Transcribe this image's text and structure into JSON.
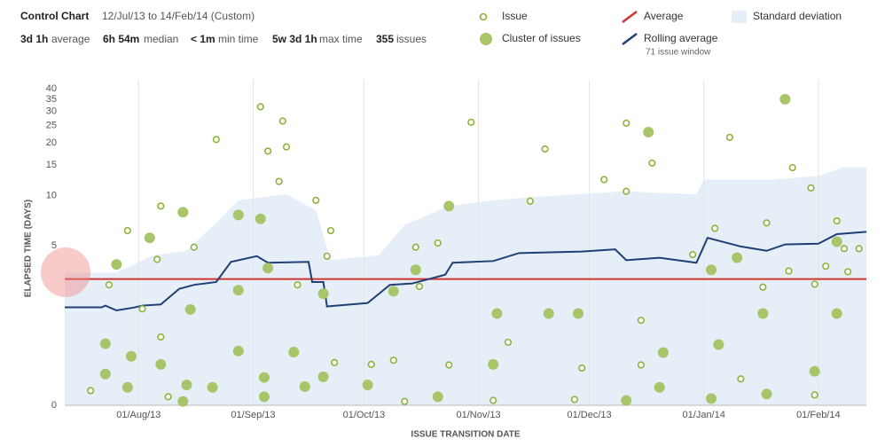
{
  "header": {
    "title": "Control Chart",
    "range": "12/Jul/13 to 14/Feb/14 (Custom)",
    "stats": [
      {
        "value": "3d 1h",
        "label": "average"
      },
      {
        "value": "6h 54m",
        "label": "median"
      },
      {
        "value": "< 1m",
        "label": "min time"
      },
      {
        "value": "5w 3d 1h",
        "label": "max time"
      },
      {
        "value": "355",
        "label": "issues"
      }
    ]
  },
  "chart_data": {
    "type": "control",
    "xlabel": "ISSUE TRANSITION DATE",
    "ylabel": "ELAPSED TIME (DAYS)",
    "xlim": [
      "2013-07-12",
      "2014-02-14"
    ],
    "xticks": [
      {
        "value": "2013-08-01",
        "label": "01/Aug/13"
      },
      {
        "value": "2013-09-01",
        "label": "01/Sep/13"
      },
      {
        "value": "2013-10-01",
        "label": "01/Oct/13"
      },
      {
        "value": "2013-11-01",
        "label": "01/Nov/13"
      },
      {
        "value": "2013-12-01",
        "label": "01/Dec/13"
      },
      {
        "value": "2014-01-01",
        "label": "01/Jan/14"
      },
      {
        "value": "2014-02-01",
        "label": "01/Feb/14"
      }
    ],
    "ylim": [
      0,
      40
    ],
    "yticks": [
      0,
      5,
      10,
      15,
      20,
      25,
      30,
      35,
      40
    ],
    "grid": "x",
    "series": [
      {
        "name": "Issue",
        "kind": "scatter",
        "color": "#8db33a",
        "x": [
          "2013-07-19",
          "2013-07-24",
          "2013-07-29",
          "2013-08-07",
          "2013-08-07",
          "2013-08-02",
          "2013-08-09",
          "2013-08-06",
          "2013-08-16",
          "2013-08-22",
          "2013-09-03",
          "2013-09-05",
          "2013-09-09",
          "2013-09-10",
          "2013-09-08",
          "2013-09-13",
          "2013-09-18",
          "2013-09-22",
          "2013-09-23",
          "2013-09-21",
          "2013-10-03",
          "2013-10-09",
          "2013-10-12",
          "2013-10-15",
          "2013-10-16",
          "2013-10-21",
          "2013-10-24",
          "2013-10-30",
          "2013-11-05",
          "2013-11-09",
          "2013-11-15",
          "2013-11-19",
          "2013-11-27",
          "2013-11-29",
          "2013-12-05",
          "2013-12-11",
          "2013-12-11",
          "2013-12-15",
          "2013-12-15",
          "2013-12-18",
          "2013-12-29",
          "2014-01-04",
          "2014-01-08",
          "2014-01-11",
          "2014-01-17",
          "2014-01-18",
          "2014-01-24",
          "2014-01-25",
          "2014-01-30",
          "2014-01-31",
          "2014-01-31",
          "2014-02-03",
          "2014-02-06",
          "2014-02-08",
          "2014-02-09",
          "2014-02-12"
        ],
        "values": [
          0.16,
          2.77,
          6.2,
          8.7,
          1.07,
          1.85,
          0.09,
          4.1,
          4.9,
          20.9,
          31.8,
          18,
          26.5,
          19,
          12.1,
          2.77,
          9.4,
          6.2,
          0.56,
          4.3,
          0.53,
          0.6,
          0.04,
          4.9,
          2.7,
          5.2,
          0.52,
          26.1,
          0.05,
          0.95,
          9.3,
          18.5,
          0.06,
          0.47,
          12.4,
          25.8,
          10.6,
          1.5,
          0.52,
          15.4,
          4.4,
          6.4,
          21.5,
          0.31,
          2.67,
          6.9,
          3.44,
          14.5,
          11.1,
          0.11,
          2.8,
          3.7,
          7.1,
          4.8,
          3.4,
          4.8
        ]
      },
      {
        "name": "Cluster of issues",
        "kind": "cluster",
        "color": "#a9c56a",
        "x": [
          "2013-07-26",
          "2013-07-23",
          "2013-07-23",
          "2013-07-29",
          "2013-07-30",
          "2013-08-04",
          "2013-08-07",
          "2013-08-13",
          "2013-08-15",
          "2013-08-14",
          "2013-08-13",
          "2013-08-21",
          "2013-08-28",
          "2013-08-28",
          "2013-08-28",
          "2013-09-03",
          "2013-09-04",
          "2013-09-04",
          "2013-09-05",
          "2013-09-12",
          "2013-09-15",
          "2013-09-20",
          "2013-09-20",
          "2013-10-02",
          "2013-10-09",
          "2013-10-15",
          "2013-10-21",
          "2013-10-24",
          "2013-11-05",
          "2013-11-06",
          "2013-11-20",
          "2013-11-28",
          "2013-12-11",
          "2013-12-17",
          "2013-12-20",
          "2013-12-21",
          "2014-01-03",
          "2014-01-03",
          "2014-01-05",
          "2014-01-10",
          "2014-01-17",
          "2014-01-18",
          "2014-01-23",
          "2014-01-31",
          "2014-02-06",
          "2014-02-06"
        ],
        "values": [
          3.8,
          0.92,
          0.38,
          0.2,
          0.67,
          5.6,
          0.53,
          8,
          1.83,
          0.23,
          0.04,
          0.2,
          2.54,
          0.77,
          7.7,
          7.3,
          0.33,
          0.09,
          3.6,
          0.75,
          0.21,
          0.34,
          2.4,
          0.23,
          2.5,
          3.5,
          0.09,
          8.7,
          0.53,
          1.7,
          1.7,
          1.7,
          0.05,
          23,
          0.2,
          0.74,
          3.5,
          0.07,
          0.9,
          4.2,
          1.7,
          0.12,
          35,
          0.42,
          5.3,
          1.7
        ]
      },
      {
        "name": "Average",
        "kind": "hline",
        "color": "#d0342c",
        "value": 3.04
      },
      {
        "name": "Rolling average",
        "kind": "line",
        "color": "#1f3f77",
        "window_label": "71 issue window",
        "x": [
          "2013-07-12",
          "2013-07-22",
          "2013-07-23",
          "2013-07-26",
          "2013-07-31",
          "2013-08-02",
          "2013-08-07",
          "2013-08-12",
          "2013-08-16",
          "2013-08-22",
          "2013-08-26",
          "2013-09-02",
          "2013-09-05",
          "2013-09-16",
          "2013-09-17",
          "2013-09-20",
          "2013-09-21",
          "2013-10-02",
          "2013-10-08",
          "2013-10-14",
          "2013-10-23",
          "2013-10-25",
          "2013-11-05",
          "2013-11-12",
          "2013-11-29",
          "2013-12-08",
          "2013-12-11",
          "2013-12-20",
          "2013-12-30",
          "2014-01-02",
          "2014-01-11",
          "2014-01-18",
          "2014-01-23",
          "2014-02-01",
          "2014-02-06",
          "2014-02-14"
        ],
        "values": [
          1.9,
          1.9,
          1.96,
          1.8,
          1.9,
          1.96,
          2.0,
          2.6,
          2.77,
          2.9,
          3.95,
          4.3,
          3.9,
          3.95,
          2.9,
          2.9,
          1.93,
          2.05,
          2.77,
          2.83,
          3.25,
          3.9,
          4.0,
          4.5,
          4.6,
          4.75,
          4.05,
          4.2,
          3.9,
          5.6,
          4.95,
          4.65,
          5.1,
          5.15,
          5.9,
          6.1
        ]
      },
      {
        "name": "Standard deviation",
        "kind": "area",
        "color": "#e6eef8",
        "x": [
          "2013-07-12",
          "2013-07-26",
          "2013-08-05",
          "2013-08-14",
          "2013-08-22",
          "2013-08-28",
          "2013-09-10",
          "2013-09-18",
          "2013-09-22",
          "2013-10-05",
          "2013-10-12",
          "2013-10-24",
          "2013-11-05",
          "2013-11-15",
          "2013-12-10",
          "2013-12-30",
          "2014-01-01",
          "2014-01-20",
          "2014-02-01",
          "2014-02-08",
          "2014-02-14"
        ],
        "values": [
          3.35,
          3.35,
          4.35,
          4.65,
          6.9,
          9.4,
          10.2,
          8.2,
          4.05,
          4.35,
          6.7,
          8.7,
          9.4,
          9.8,
          10.6,
          10.2,
          12.4,
          12.4,
          13,
          14.6,
          14.6
        ]
      }
    ]
  }
}
